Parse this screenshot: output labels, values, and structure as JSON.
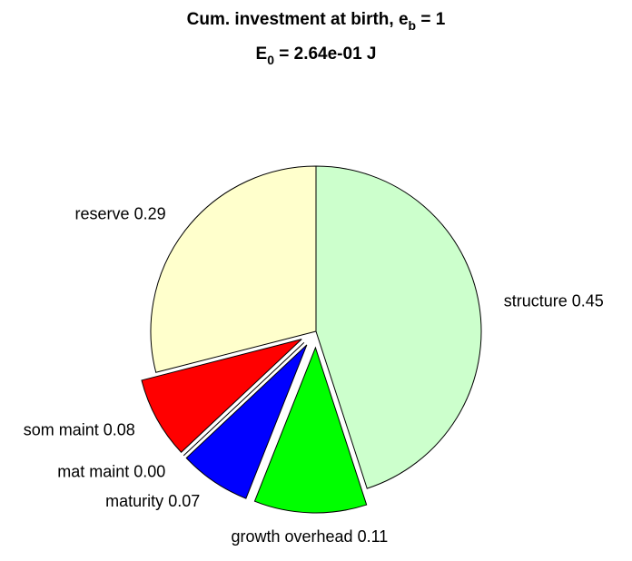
{
  "chart_data": {
    "type": "pie",
    "title_lines": [
      {
        "main": "Cum. investment at birth, e",
        "sub": "b",
        "rest": " = 1"
      },
      {
        "main": "E",
        "sub": "0",
        "rest": " = 2.64e-01 J"
      }
    ],
    "categories": [
      "structure",
      "growth overhead",
      "maturity",
      "mat maint",
      "som maint",
      "reserve"
    ],
    "values": [
      0.45,
      0.11,
      0.07,
      0.0,
      0.08,
      0.29
    ],
    "value_labels": [
      "0.45",
      "0.11",
      "0.07",
      "0.00",
      "0.08",
      "0.29"
    ],
    "colors": [
      "#ccffcc",
      "#00ff00",
      "#0000ff",
      "#ff00ff",
      "#ff0000",
      "#ffffcc"
    ],
    "explode": [
      false,
      true,
      true,
      true,
      true,
      false
    ]
  }
}
